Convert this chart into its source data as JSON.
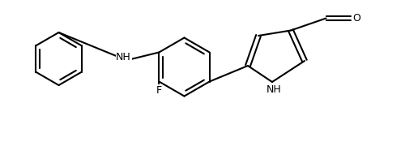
{
  "background_color": "#ffffff",
  "line_color": "#000000",
  "line_width": 1.5,
  "font_size": 9,
  "atoms": {
    "NH_label": "NH",
    "F_label": "F",
    "O_label": "O",
    "NH2_label": "NH"
  },
  "figsize": [
    5.0,
    1.75
  ],
  "dpi": 100
}
